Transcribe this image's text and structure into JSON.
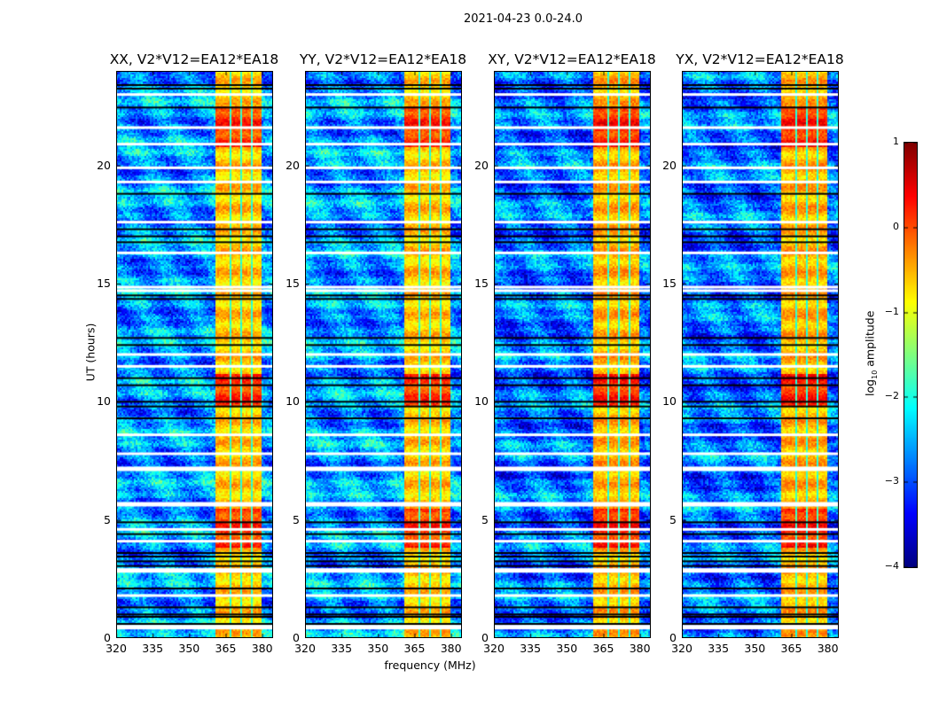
{
  "suptitle": "2021-04-23 0.0-24.0",
  "chart_data": {
    "type": "heatmap",
    "title": "2021-04-23 0.0-24.0",
    "xlabel": "frequency (MHz)",
    "ylabel": "UT (hours)",
    "xlim": [
      320,
      384.5
    ],
    "ylim": [
      0,
      24
    ],
    "xticks": [
      "320",
      "335",
      "350",
      "365",
      "380"
    ],
    "xtick_values": [
      320,
      335,
      350,
      365,
      380
    ],
    "yticks": [
      "0",
      "5",
      "10",
      "15",
      "20"
    ],
    "ytick_values": [
      0,
      5,
      10,
      15,
      20
    ],
    "panels": [
      {
        "title": "XX, V2*V12=EA12*EA18"
      },
      {
        "title": "YY, V2*V12=EA12*EA18"
      },
      {
        "title": "XY, V2*V12=EA12*EA18"
      },
      {
        "title": "YX, V2*V12=EA12*EA18"
      }
    ],
    "strong_band_channels_mhz": [
      [
        361.3,
        366.6
      ],
      [
        367.3,
        371.1
      ],
      [
        371.8,
        375.6
      ],
      [
        376.3,
        380.4
      ]
    ],
    "background_level_log10": -2.6,
    "band_level_log10": -0.6,
    "high_activity_hours": [
      [
        20.8,
        22.5
      ],
      [
        9.8,
        11.2
      ],
      [
        3.8,
        5.5
      ]
    ],
    "black_flag_rows_hours": [
      23.4,
      23.25,
      22.45,
      18.8,
      17.3,
      17.0,
      16.75,
      14.5,
      14.35,
      12.7,
      12.4,
      11.0,
      10.7,
      10.0,
      9.8,
      9.3,
      4.9,
      4.4,
      3.6,
      3.45,
      3.25,
      3.05,
      2.1,
      1.3,
      1.0,
      0.9,
      0.6
    ],
    "white_flag_rows_hours": [
      23.0,
      21.6,
      20.9,
      19.9,
      19.3,
      17.6,
      16.3,
      14.85,
      14.7,
      12.0,
      11.5,
      8.6,
      7.8,
      7.2,
      5.7,
      4.6,
      4.1,
      2.9,
      1.8,
      0.5
    ],
    "colorbar": {
      "label": "log10 amplitude",
      "label_main": "log",
      "label_sub": "10",
      "label_rest": " amplitude",
      "range": [
        -4,
        1
      ],
      "ticks": [
        "1",
        "0",
        "−1",
        "−2",
        "−3",
        "−4"
      ],
      "tick_values": [
        1,
        0,
        -1,
        -2,
        -3,
        -4
      ],
      "colormap": "jet"
    }
  }
}
